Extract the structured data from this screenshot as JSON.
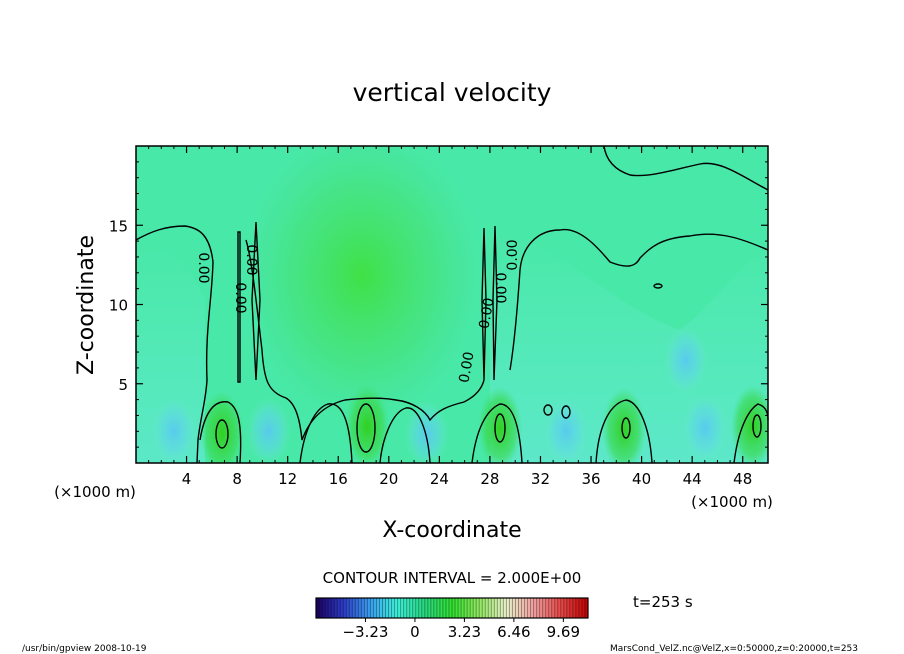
{
  "chart_data": {
    "type": "heatmap",
    "title": "vertical velocity",
    "xlabel": "X-coordinate",
    "ylabel": "Z-coordinate",
    "x_unit_left": "(×1000 m)",
    "x_unit_right": "(×1000 m)",
    "xlim": [
      0,
      50
    ],
    "ylim": [
      0,
      20
    ],
    "x_ticks": [
      4,
      8,
      12,
      16,
      20,
      24,
      28,
      32,
      36,
      40,
      44,
      48
    ],
    "y_ticks": [
      5,
      10,
      15
    ],
    "grid": false,
    "contour_interval_label": "CONTOUR INTERVAL = 2.000E+00",
    "time_label": "t=253 s",
    "colorbar": {
      "ticks": [
        "−3.23",
        "0",
        "3.23",
        "6.46",
        "9.69"
      ],
      "range": [
        -6.46,
        11.3
      ],
      "colors": [
        "#1a0060",
        "#2d3cc8",
        "#3aa0f0",
        "#3cf0d8",
        "#28d880",
        "#30e030",
        "#90e860",
        "#e8f0c8",
        "#f0a0a0",
        "#e84848",
        "#c00000"
      ]
    },
    "contour_labels": [
      "0.00",
      "0.00",
      "0.00",
      "0.00",
      "0.00",
      "0.00",
      "0.00",
      "0.00",
      "0.00"
    ],
    "updraft_cores": [
      {
        "x": 6.8,
        "z": 1.9,
        "value": 2
      },
      {
        "x": 18.3,
        "z": 2.3,
        "value": 2
      },
      {
        "x": 28.8,
        "z": 2.2,
        "value": 2
      },
      {
        "x": 38.6,
        "z": 2.1,
        "value": 2
      },
      {
        "x": 48.8,
        "z": 2.3,
        "value": 2
      }
    ],
    "downdraft_regions": [
      {
        "x": 3.0,
        "z": 2.0
      },
      {
        "x": 10.5,
        "z": 2.0
      },
      {
        "x": 23.0,
        "z": 1.8
      },
      {
        "x": 34.0,
        "z": 2.0
      },
      {
        "x": 45.0,
        "z": 2.2
      },
      {
        "x": 43.5,
        "z": 6.5
      }
    ]
  },
  "footer": {
    "left": "/usr/bin/gpview  2008-10-19",
    "right": "MarsCond_VelZ.nc@VelZ,x=0:50000,z=0:20000,t=253"
  }
}
